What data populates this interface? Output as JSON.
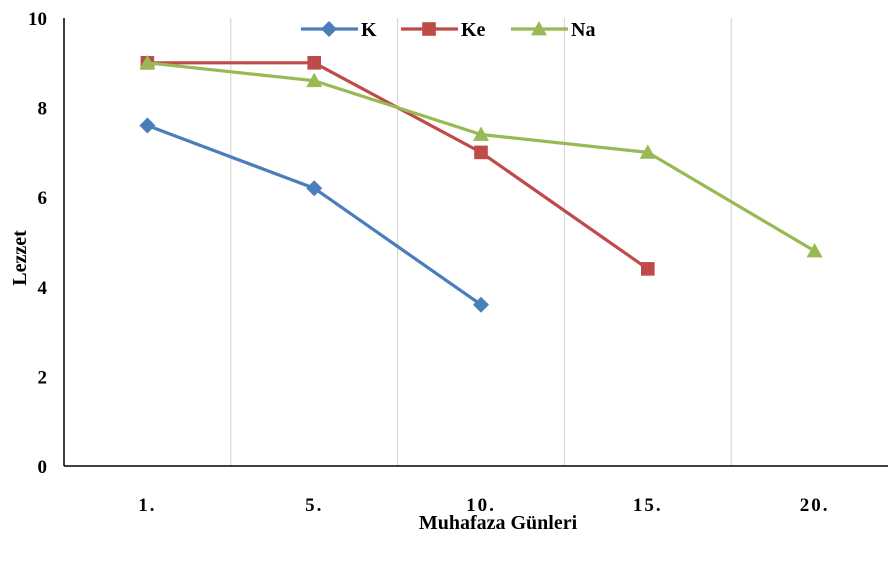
{
  "chart_data": {
    "type": "line",
    "categories": [
      "1.",
      "5.",
      "10.",
      "15.",
      "20."
    ],
    "xlabel": "Muhafaza Günleri",
    "ylabel": "Lezzet",
    "ylim": [
      0,
      10
    ],
    "yticks": [
      "0",
      "2",
      "4",
      "6",
      "8",
      "10"
    ],
    "grid": "vertical",
    "legend_position": "top-center",
    "series": [
      {
        "name": "K",
        "color": "#4a7ebb",
        "marker": "diamond",
        "values": [
          7.6,
          6.2,
          3.6,
          null,
          null
        ]
      },
      {
        "name": "Ke",
        "color": "#be4b48",
        "marker": "square",
        "values": [
          9.0,
          9.0,
          7.0,
          4.4,
          null
        ]
      },
      {
        "name": "Na",
        "color": "#98b954",
        "marker": "triangle",
        "values": [
          9.0,
          8.6,
          7.4,
          7.0,
          4.8
        ]
      }
    ]
  }
}
